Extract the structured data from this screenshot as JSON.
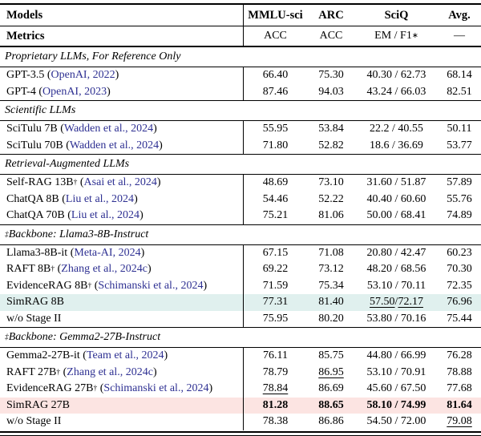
{
  "colors": {
    "link": "#2e3092",
    "highlight_cyan": "#e0f0ee",
    "highlight_pink": "#fce4e2",
    "rule": "#000000"
  },
  "header_row": {
    "label": "Models",
    "mmlu": "MMLU-sci",
    "arc": "ARC",
    "sciq": "SciQ",
    "avg": "Avg."
  },
  "metrics_row": {
    "label": "Metrics",
    "mmlu": "ACC",
    "arc": "ACC",
    "sciq": "EM / F1",
    "sciq_sup": "∗",
    "avg": "—"
  },
  "sections": [
    {
      "prefix": "",
      "title": "Proprietary LLMs, For Reference Only",
      "rows": [
        {
          "model": "GPT-3.5",
          "sup": "",
          "citation": "OpenAI, 2022",
          "highlight": "",
          "bold": false,
          "indent": false,
          "cells": [
            [
              {
                "t": "66.40"
              }
            ],
            [
              {
                "t": "75.30"
              }
            ],
            [
              {
                "t": "40.30 / 62.73"
              }
            ],
            [
              {
                "t": "68.14"
              }
            ]
          ]
        },
        {
          "model": "GPT-4",
          "sup": "",
          "citation": "OpenAI, 2023",
          "highlight": "",
          "bold": false,
          "indent": false,
          "cells": [
            [
              {
                "t": "87.46"
              }
            ],
            [
              {
                "t": "94.03"
              }
            ],
            [
              {
                "t": "43.24 / 66.03"
              }
            ],
            [
              {
                "t": "82.51"
              }
            ]
          ]
        }
      ]
    },
    {
      "prefix": "",
      "title": "Scientific LLMs",
      "rows": [
        {
          "model": "SciTulu 7B",
          "sup": "",
          "citation": "Wadden et al., 2024",
          "highlight": "",
          "bold": false,
          "indent": false,
          "cells": [
            [
              {
                "t": "55.95"
              }
            ],
            [
              {
                "t": "53.84"
              }
            ],
            [
              {
                "t": "22.2 / 40.55"
              }
            ],
            [
              {
                "t": "50.11"
              }
            ]
          ]
        },
        {
          "model": "SciTulu 70B",
          "sup": "",
          "citation": "Wadden et al., 2024",
          "highlight": "",
          "bold": false,
          "indent": false,
          "cells": [
            [
              {
                "t": "71.80"
              }
            ],
            [
              {
                "t": "52.82"
              }
            ],
            [
              {
                "t": "18.6 / 36.69"
              }
            ],
            [
              {
                "t": "53.77"
              }
            ]
          ]
        }
      ]
    },
    {
      "prefix": "",
      "title": "Retrieval-Augmented LLMs",
      "rows": [
        {
          "model": "Self-RAG 13B",
          "sup": "†",
          "citation": "Asai et al., 2024",
          "highlight": "",
          "bold": false,
          "indent": false,
          "cells": [
            [
              {
                "t": "48.69"
              }
            ],
            [
              {
                "t": "73.10"
              }
            ],
            [
              {
                "t": "31.60 / 51.87"
              }
            ],
            [
              {
                "t": "57.89"
              }
            ]
          ]
        },
        {
          "model": "ChatQA 8B",
          "sup": "",
          "citation": "Liu et al., 2024",
          "highlight": "",
          "bold": false,
          "indent": false,
          "cells": [
            [
              {
                "t": "54.46"
              }
            ],
            [
              {
                "t": "52.22"
              }
            ],
            [
              {
                "t": "40.40 / 60.60"
              }
            ],
            [
              {
                "t": "55.76"
              }
            ]
          ]
        },
        {
          "model": "ChatQA 70B",
          "sup": "",
          "citation": "Liu et al., 2024",
          "highlight": "",
          "bold": false,
          "indent": false,
          "cells": [
            [
              {
                "t": "75.21"
              }
            ],
            [
              {
                "t": "81.06"
              }
            ],
            [
              {
                "t": "50.00 / 68.41"
              }
            ],
            [
              {
                "t": "74.89"
              }
            ]
          ]
        }
      ]
    },
    {
      "prefix": "‡",
      "title": "Backbone: Llama3-8B-Instruct",
      "rows": [
        {
          "model": "Llama3-8B-it",
          "sup": "",
          "citation": "Meta-AI, 2024",
          "highlight": "",
          "bold": false,
          "indent": false,
          "cells": [
            [
              {
                "t": "67.15"
              }
            ],
            [
              {
                "t": "71.08"
              }
            ],
            [
              {
                "t": "20.80 / 42.47"
              }
            ],
            [
              {
                "t": "60.23"
              }
            ]
          ]
        },
        {
          "model": "RAFT 8B",
          "sup": "†",
          "citation": "Zhang et al., 2024c",
          "highlight": "",
          "bold": false,
          "indent": false,
          "cells": [
            [
              {
                "t": "69.22"
              }
            ],
            [
              {
                "t": "73.12"
              }
            ],
            [
              {
                "t": "48.20 / 68.56"
              }
            ],
            [
              {
                "t": "70.30"
              }
            ]
          ]
        },
        {
          "model": "EvidenceRAG 8B",
          "sup": "†",
          "citation": "Schimanski et al., 2024",
          "highlight": "",
          "bold": false,
          "indent": false,
          "cells": [
            [
              {
                "t": "71.59"
              }
            ],
            [
              {
                "t": "75.34"
              }
            ],
            [
              {
                "t": "53.10 / 70.11"
              }
            ],
            [
              {
                "t": "72.35"
              }
            ]
          ]
        },
        {
          "model": "SimRAG 8B",
          "sup": "",
          "citation": "",
          "highlight": "cyan",
          "bold": false,
          "indent": false,
          "cells": [
            [
              {
                "t": "77.31"
              }
            ],
            [
              {
                "t": "81.40"
              }
            ],
            [
              {
                "t": "57.50",
                "u": true
              },
              {
                "t": " / "
              },
              {
                "t": "72.17",
                "u": true
              }
            ],
            [
              {
                "t": "76.96"
              }
            ]
          ]
        },
        {
          "model": "w/o Stage II",
          "sup": "",
          "citation": "",
          "highlight": "",
          "bold": false,
          "indent": true,
          "cells": [
            [
              {
                "t": "75.95"
              }
            ],
            [
              {
                "t": "80.20"
              }
            ],
            [
              {
                "t": "53.80 / 70.16"
              }
            ],
            [
              {
                "t": "75.44"
              }
            ]
          ]
        }
      ]
    },
    {
      "prefix": "‡",
      "title": "Backbone: Gemma2-27B-Instruct",
      "rows": [
        {
          "model": "Gemma2-27B-it",
          "sup": "",
          "citation": "Team et al., 2024",
          "highlight": "",
          "bold": false,
          "indent": false,
          "cells": [
            [
              {
                "t": "76.11"
              }
            ],
            [
              {
                "t": "85.75"
              }
            ],
            [
              {
                "t": "44.80 / 66.99"
              }
            ],
            [
              {
                "t": "76.28"
              }
            ]
          ]
        },
        {
          "model": "RAFT 27B",
          "sup": "†",
          "citation": "Zhang et al., 2024c",
          "highlight": "",
          "bold": false,
          "indent": false,
          "cells": [
            [
              {
                "t": "78.79"
              }
            ],
            [
              {
                "t": "86.95",
                "u": true
              }
            ],
            [
              {
                "t": "53.10 / 70.91"
              }
            ],
            [
              {
                "t": "78.88"
              }
            ]
          ]
        },
        {
          "model": "EvidenceRAG 27B",
          "sup": "†",
          "citation": "Schimanski et al., 2024",
          "highlight": "",
          "bold": false,
          "indent": false,
          "cells": [
            [
              {
                "t": "78.84",
                "u": true
              }
            ],
            [
              {
                "t": "86.69"
              }
            ],
            [
              {
                "t": "45.60 / 67.50"
              }
            ],
            [
              {
                "t": "77.68"
              }
            ]
          ]
        },
        {
          "model": "SimRAG 27B",
          "sup": "",
          "citation": "",
          "highlight": "pink",
          "bold": true,
          "indent": false,
          "cells": [
            [
              {
                "t": "81.28"
              }
            ],
            [
              {
                "t": "88.65"
              }
            ],
            [
              {
                "t": "58.10 / 74.99"
              }
            ],
            [
              {
                "t": "81.64"
              }
            ]
          ]
        },
        {
          "model": "w/o Stage II",
          "sup": "",
          "citation": "",
          "highlight": "",
          "bold": false,
          "indent": true,
          "cells": [
            [
              {
                "t": "78.38"
              }
            ],
            [
              {
                "t": "86.86"
              }
            ],
            [
              {
                "t": "54.50 / 72.00"
              }
            ],
            [
              {
                "t": "79.08",
                "u": true
              }
            ]
          ]
        }
      ]
    }
  ]
}
